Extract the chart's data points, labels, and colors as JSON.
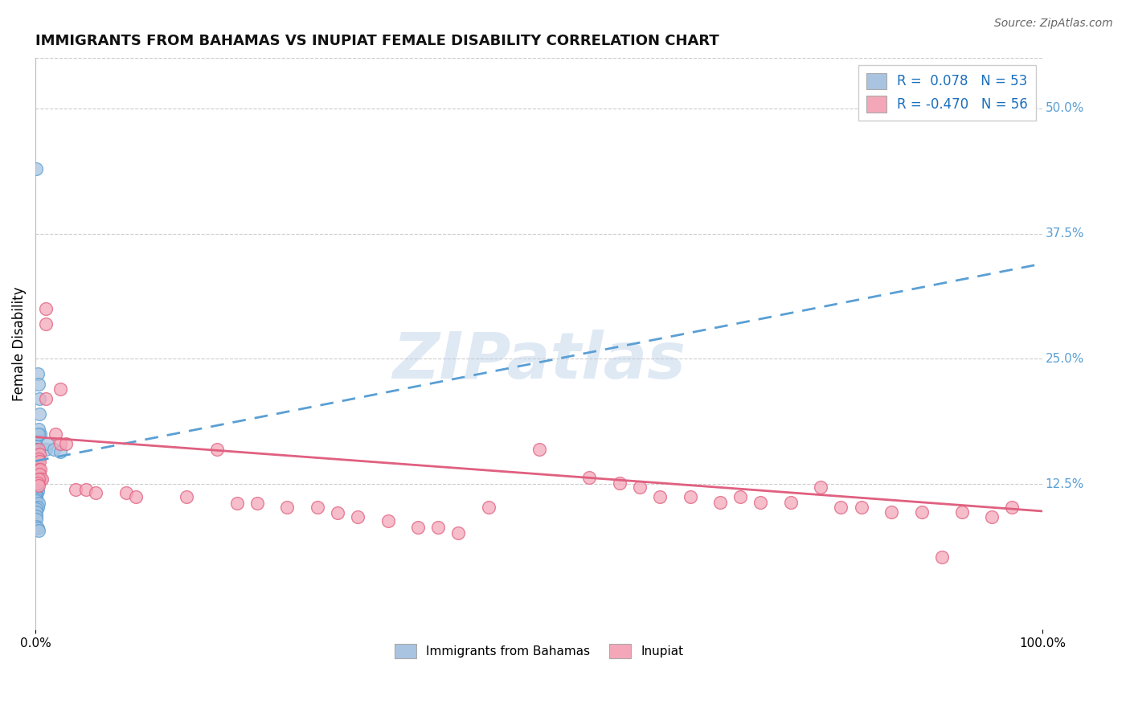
{
  "title": "IMMIGRANTS FROM BAHAMAS VS INUPIAT FEMALE DISABILITY CORRELATION CHART",
  "source": "Source: ZipAtlas.com",
  "ylabel": "Female Disability",
  "xlim": [
    0.0,
    1.0
  ],
  "ylim": [
    -0.02,
    0.55
  ],
  "xtick_labels": [
    "0.0%",
    "100.0%"
  ],
  "ytick_positions": [
    0.125,
    0.25,
    0.375,
    0.5
  ],
  "ytick_labels": [
    "12.5%",
    "25.0%",
    "37.5%",
    "50.0%"
  ],
  "legend1_label": "R =  0.078   N = 53",
  "legend2_label": "R = -0.470   N = 56",
  "legend1_color": "#a8c4e0",
  "legend2_color": "#f4a7b9",
  "trendline1_color": "#5a9fd4",
  "trendline2_color": "#e06080",
  "watermark": "ZIPatlas",
  "background_color": "#ffffff",
  "grid_color": "#cccccc",
  "blue_trendline": [
    [
      0.0,
      0.148
    ],
    [
      1.0,
      0.345
    ]
  ],
  "pink_trendline": [
    [
      0.0,
      0.172
    ],
    [
      1.0,
      0.098
    ]
  ],
  "blue_scatter": [
    [
      0.001,
      0.44
    ],
    [
      0.002,
      0.235
    ],
    [
      0.003,
      0.225
    ],
    [
      0.004,
      0.21
    ],
    [
      0.004,
      0.195
    ],
    [
      0.005,
      0.175
    ],
    [
      0.001,
      0.165
    ],
    [
      0.001,
      0.163
    ],
    [
      0.001,
      0.16
    ],
    [
      0.002,
      0.158
    ],
    [
      0.002,
      0.175
    ],
    [
      0.003,
      0.18
    ],
    [
      0.003,
      0.175
    ],
    [
      0.001,
      0.16
    ],
    [
      0.001,
      0.157
    ],
    [
      0.001,
      0.155
    ],
    [
      0.001,
      0.153
    ],
    [
      0.002,
      0.152
    ],
    [
      0.001,
      0.15
    ],
    [
      0.001,
      0.148
    ],
    [
      0.001,
      0.146
    ],
    [
      0.001,
      0.145
    ],
    [
      0.001,
      0.143
    ],
    [
      0.001,
      0.14
    ],
    [
      0.001,
      0.138
    ],
    [
      0.001,
      0.136
    ],
    [
      0.001,
      0.134
    ],
    [
      0.001,
      0.132
    ],
    [
      0.001,
      0.13
    ],
    [
      0.001,
      0.128
    ],
    [
      0.002,
      0.126
    ],
    [
      0.001,
      0.124
    ],
    [
      0.001,
      0.122
    ],
    [
      0.001,
      0.12
    ],
    [
      0.002,
      0.118
    ],
    [
      0.001,
      0.116
    ],
    [
      0.001,
      0.114
    ],
    [
      0.001,
      0.112
    ],
    [
      0.001,
      0.11
    ],
    [
      0.001,
      0.108
    ],
    [
      0.003,
      0.106
    ],
    [
      0.002,
      0.102
    ],
    [
      0.001,
      0.1
    ],
    [
      0.001,
      0.097
    ],
    [
      0.001,
      0.093
    ],
    [
      0.001,
      0.09
    ],
    [
      0.001,
      0.083
    ],
    [
      0.002,
      0.081
    ],
    [
      0.003,
      0.079
    ],
    [
      0.01,
      0.16
    ],
    [
      0.012,
      0.165
    ],
    [
      0.018,
      0.16
    ],
    [
      0.025,
      0.157
    ]
  ],
  "pink_scatter": [
    [
      0.01,
      0.3
    ],
    [
      0.01,
      0.285
    ],
    [
      0.01,
      0.21
    ],
    [
      0.025,
      0.22
    ],
    [
      0.02,
      0.175
    ],
    [
      0.025,
      0.165
    ],
    [
      0.03,
      0.165
    ],
    [
      0.003,
      0.16
    ],
    [
      0.004,
      0.155
    ],
    [
      0.003,
      0.15
    ],
    [
      0.004,
      0.148
    ],
    [
      0.003,
      0.14
    ],
    [
      0.005,
      0.14
    ],
    [
      0.004,
      0.135
    ],
    [
      0.005,
      0.13
    ],
    [
      0.006,
      0.13
    ],
    [
      0.003,
      0.13
    ],
    [
      0.002,
      0.126
    ],
    [
      0.003,
      0.124
    ],
    [
      0.04,
      0.12
    ],
    [
      0.05,
      0.12
    ],
    [
      0.06,
      0.116
    ],
    [
      0.09,
      0.116
    ],
    [
      0.1,
      0.112
    ],
    [
      0.15,
      0.112
    ],
    [
      0.18,
      0.16
    ],
    [
      0.2,
      0.106
    ],
    [
      0.22,
      0.106
    ],
    [
      0.25,
      0.102
    ],
    [
      0.28,
      0.102
    ],
    [
      0.3,
      0.096
    ],
    [
      0.32,
      0.092
    ],
    [
      0.35,
      0.088
    ],
    [
      0.38,
      0.082
    ],
    [
      0.4,
      0.082
    ],
    [
      0.42,
      0.076
    ],
    [
      0.45,
      0.102
    ],
    [
      0.5,
      0.16
    ],
    [
      0.55,
      0.132
    ],
    [
      0.58,
      0.126
    ],
    [
      0.6,
      0.122
    ],
    [
      0.62,
      0.112
    ],
    [
      0.65,
      0.112
    ],
    [
      0.68,
      0.107
    ],
    [
      0.7,
      0.112
    ],
    [
      0.72,
      0.107
    ],
    [
      0.75,
      0.107
    ],
    [
      0.78,
      0.122
    ],
    [
      0.8,
      0.102
    ],
    [
      0.82,
      0.102
    ],
    [
      0.85,
      0.097
    ],
    [
      0.88,
      0.097
    ],
    [
      0.9,
      0.052
    ],
    [
      0.92,
      0.097
    ],
    [
      0.95,
      0.092
    ],
    [
      0.97,
      0.102
    ]
  ]
}
